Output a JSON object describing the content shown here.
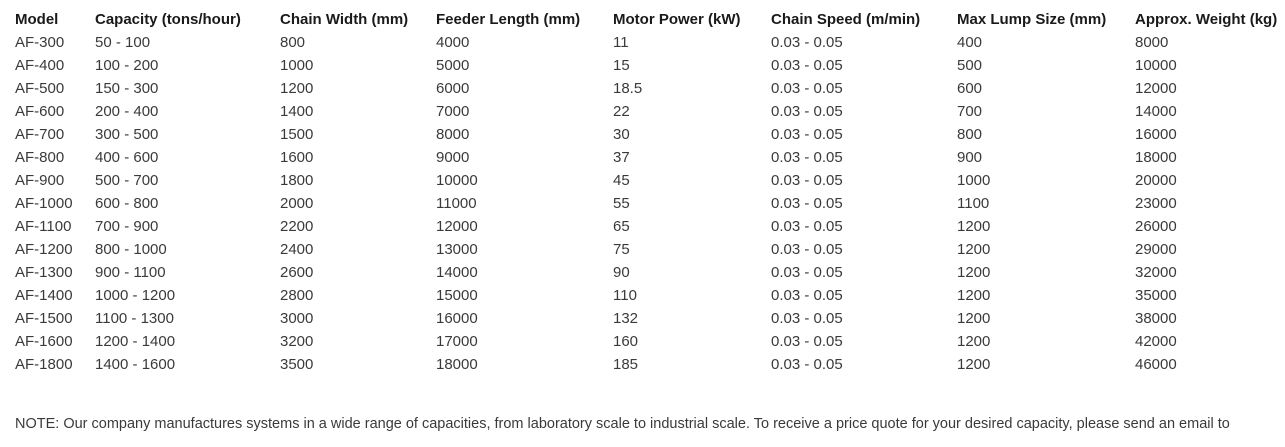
{
  "table": {
    "headers": [
      "Model",
      "Capacity (tons/hour)",
      "Chain Width (mm)",
      "Feeder Length (mm)",
      "Motor Power (kW)",
      "Chain Speed (m/min)",
      "Max Lump Size (mm)",
      "Approx. Weight (kg)"
    ],
    "rows": [
      [
        "AF-300",
        "50 - 100",
        "800",
        "4000",
        "11",
        "0.03 - 0.05",
        "400",
        "8000"
      ],
      [
        "AF-400",
        "100 - 200",
        "1000",
        "5000",
        "15",
        "0.03 - 0.05",
        "500",
        "10000"
      ],
      [
        "AF-500",
        "150 - 300",
        "1200",
        "6000",
        "18.5",
        "0.03 - 0.05",
        "600",
        "12000"
      ],
      [
        "AF-600",
        "200 - 400",
        "1400",
        "7000",
        "22",
        "0.03 - 0.05",
        "700",
        "14000"
      ],
      [
        "AF-700",
        "300 - 500",
        "1500",
        "8000",
        "30",
        "0.03 - 0.05",
        "800",
        "16000"
      ],
      [
        "AF-800",
        "400 - 600",
        "1600",
        "9000",
        "37",
        "0.03 - 0.05",
        "900",
        "18000"
      ],
      [
        "AF-900",
        "500 - 700",
        "1800",
        "10000",
        "45",
        "0.03 - 0.05",
        "1000",
        "20000"
      ],
      [
        "AF-1000",
        "600 - 800",
        "2000",
        "11000",
        "55",
        "0.03 - 0.05",
        "1100",
        "23000"
      ],
      [
        "AF-1100",
        "700 - 900",
        "2200",
        "12000",
        "65",
        "0.03 - 0.05",
        "1200",
        "26000"
      ],
      [
        "AF-1200",
        "800 - 1000",
        "2400",
        "13000",
        "75",
        "0.03 - 0.05",
        "1200",
        "29000"
      ],
      [
        "AF-1300",
        "900 - 1100",
        "2600",
        "14000",
        "90",
        "0.03 - 0.05",
        "1200",
        "32000"
      ],
      [
        "AF-1400",
        "1000 - 1200",
        "2800",
        "15000",
        "110",
        "0.03 - 0.05",
        "1200",
        "35000"
      ],
      [
        "AF-1500",
        "1100 - 1300",
        "3000",
        "16000",
        "132",
        "0.03 - 0.05",
        "1200",
        "38000"
      ],
      [
        "AF-1600",
        "1200 - 1400",
        "3200",
        "17000",
        "160",
        "0.03 - 0.05",
        "1200",
        "42000"
      ],
      [
        "AF-1800",
        "1400 - 1600",
        "3500",
        "18000",
        "185",
        "0.03 - 0.05",
        "1200",
        "46000"
      ]
    ]
  },
  "note": "NOTE: Our company manufactures systems in a wide range of capacities, from laboratory scale to industrial scale. To receive a price quote for your desired capacity, please send an email to"
}
